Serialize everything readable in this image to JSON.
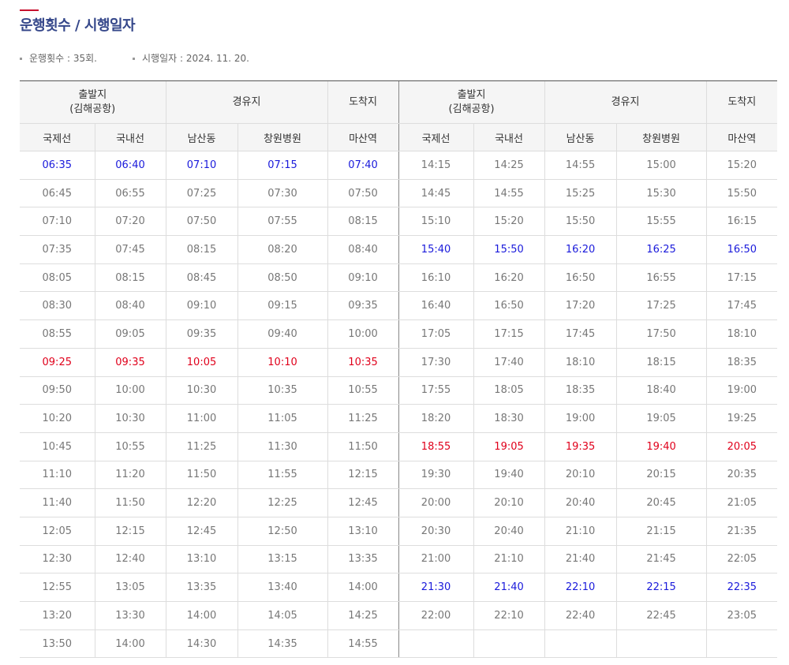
{
  "page": {
    "title": "운행횟수 / 시행일자",
    "info": {
      "count": "운행횟수 : 35회.",
      "date": "시행일자 : 2024. 11. 20."
    }
  },
  "table": {
    "header": {
      "departure_line1": "출발지",
      "departure_line2": "(김해공항)",
      "via": "경유지",
      "arrival": "도착지",
      "col_international": "국제선",
      "col_domestic": "국내선",
      "col_namsan": "남산동",
      "col_changwon": "창원병원",
      "col_masan": "마산역"
    },
    "left_rows": [
      {
        "times": [
          "06:35",
          "06:40",
          "07:10",
          "07:15",
          "07:40"
        ],
        "color": "blue"
      },
      {
        "times": [
          "06:45",
          "06:55",
          "07:25",
          "07:30",
          "07:50"
        ],
        "color": "normal"
      },
      {
        "times": [
          "07:10",
          "07:20",
          "07:50",
          "07:55",
          "08:15"
        ],
        "color": "normal"
      },
      {
        "times": [
          "07:35",
          "07:45",
          "08:15",
          "08:20",
          "08:40"
        ],
        "color": "normal"
      },
      {
        "times": [
          "08:05",
          "08:15",
          "08:45",
          "08:50",
          "09:10"
        ],
        "color": "normal"
      },
      {
        "times": [
          "08:30",
          "08:40",
          "09:10",
          "09:15",
          "09:35"
        ],
        "color": "normal"
      },
      {
        "times": [
          "08:55",
          "09:05",
          "09:35",
          "09:40",
          "10:00"
        ],
        "color": "normal"
      },
      {
        "times": [
          "09:25",
          "09:35",
          "10:05",
          "10:10",
          "10:35"
        ],
        "color": "red"
      },
      {
        "times": [
          "09:50",
          "10:00",
          "10:30",
          "10:35",
          "10:55"
        ],
        "color": "normal"
      },
      {
        "times": [
          "10:20",
          "10:30",
          "11:00",
          "11:05",
          "11:25"
        ],
        "color": "normal"
      },
      {
        "times": [
          "10:45",
          "10:55",
          "11:25",
          "11:30",
          "11:50"
        ],
        "color": "normal"
      },
      {
        "times": [
          "11:10",
          "11:20",
          "11:50",
          "11:55",
          "12:15"
        ],
        "color": "normal"
      },
      {
        "times": [
          "11:40",
          "11:50",
          "12:20",
          "12:25",
          "12:45"
        ],
        "color": "normal"
      },
      {
        "times": [
          "12:05",
          "12:15",
          "12:45",
          "12:50",
          "13:10"
        ],
        "color": "normal"
      },
      {
        "times": [
          "12:30",
          "12:40",
          "13:10",
          "13:15",
          "13:35"
        ],
        "color": "normal"
      },
      {
        "times": [
          "12:55",
          "13:05",
          "13:35",
          "13:40",
          "14:00"
        ],
        "color": "normal"
      },
      {
        "times": [
          "13:20",
          "13:30",
          "14:00",
          "14:05",
          "14:25"
        ],
        "color": "normal"
      },
      {
        "times": [
          "13:50",
          "14:00",
          "14:30",
          "14:35",
          "14:55"
        ],
        "color": "normal"
      }
    ],
    "right_rows": [
      {
        "times": [
          "14:15",
          "14:25",
          "14:55",
          "15:00",
          "15:20"
        ],
        "color": "normal"
      },
      {
        "times": [
          "14:45",
          "14:55",
          "15:25",
          "15:30",
          "15:50"
        ],
        "color": "normal"
      },
      {
        "times": [
          "15:10",
          "15:20",
          "15:50",
          "15:55",
          "16:15"
        ],
        "color": "normal"
      },
      {
        "times": [
          "15:40",
          "15:50",
          "16:20",
          "16:25",
          "16:50"
        ],
        "color": "blue"
      },
      {
        "times": [
          "16:10",
          "16:20",
          "16:50",
          "16:55",
          "17:15"
        ],
        "color": "normal"
      },
      {
        "times": [
          "16:40",
          "16:50",
          "17:20",
          "17:25",
          "17:45"
        ],
        "color": "normal"
      },
      {
        "times": [
          "17:05",
          "17:15",
          "17:45",
          "17:50",
          "18:10"
        ],
        "color": "normal"
      },
      {
        "times": [
          "17:30",
          "17:40",
          "18:10",
          "18:15",
          "18:35"
        ],
        "color": "normal"
      },
      {
        "times": [
          "17:55",
          "18:05",
          "18:35",
          "18:40",
          "19:00"
        ],
        "color": "normal"
      },
      {
        "times": [
          "18:20",
          "18:30",
          "19:00",
          "19:05",
          "19:25"
        ],
        "color": "normal"
      },
      {
        "times": [
          "18:55",
          "19:05",
          "19:35",
          "19:40",
          "20:05"
        ],
        "color": "red"
      },
      {
        "times": [
          "19:30",
          "19:40",
          "20:10",
          "20:15",
          "20:35"
        ],
        "color": "normal"
      },
      {
        "times": [
          "20:00",
          "20:10",
          "20:40",
          "20:45",
          "21:05"
        ],
        "color": "normal"
      },
      {
        "times": [
          "20:30",
          "20:40",
          "21:10",
          "21:15",
          "21:35"
        ],
        "color": "normal"
      },
      {
        "times": [
          "21:00",
          "21:10",
          "21:40",
          "21:45",
          "22:05"
        ],
        "color": "normal"
      },
      {
        "times": [
          "21:30",
          "21:40",
          "22:10",
          "22:15",
          "22:35"
        ],
        "color": "blue"
      },
      {
        "times": [
          "22:00",
          "22:10",
          "22:40",
          "22:45",
          "23:05"
        ],
        "color": "normal"
      },
      {
        "times": [
          "",
          "",
          "",
          "",
          ""
        ],
        "color": "normal"
      }
    ]
  },
  "colors": {
    "title": "#35478a",
    "accent": "#c8102e",
    "highlight_blue": "#1a1adb",
    "highlight_red": "#e0001b"
  }
}
